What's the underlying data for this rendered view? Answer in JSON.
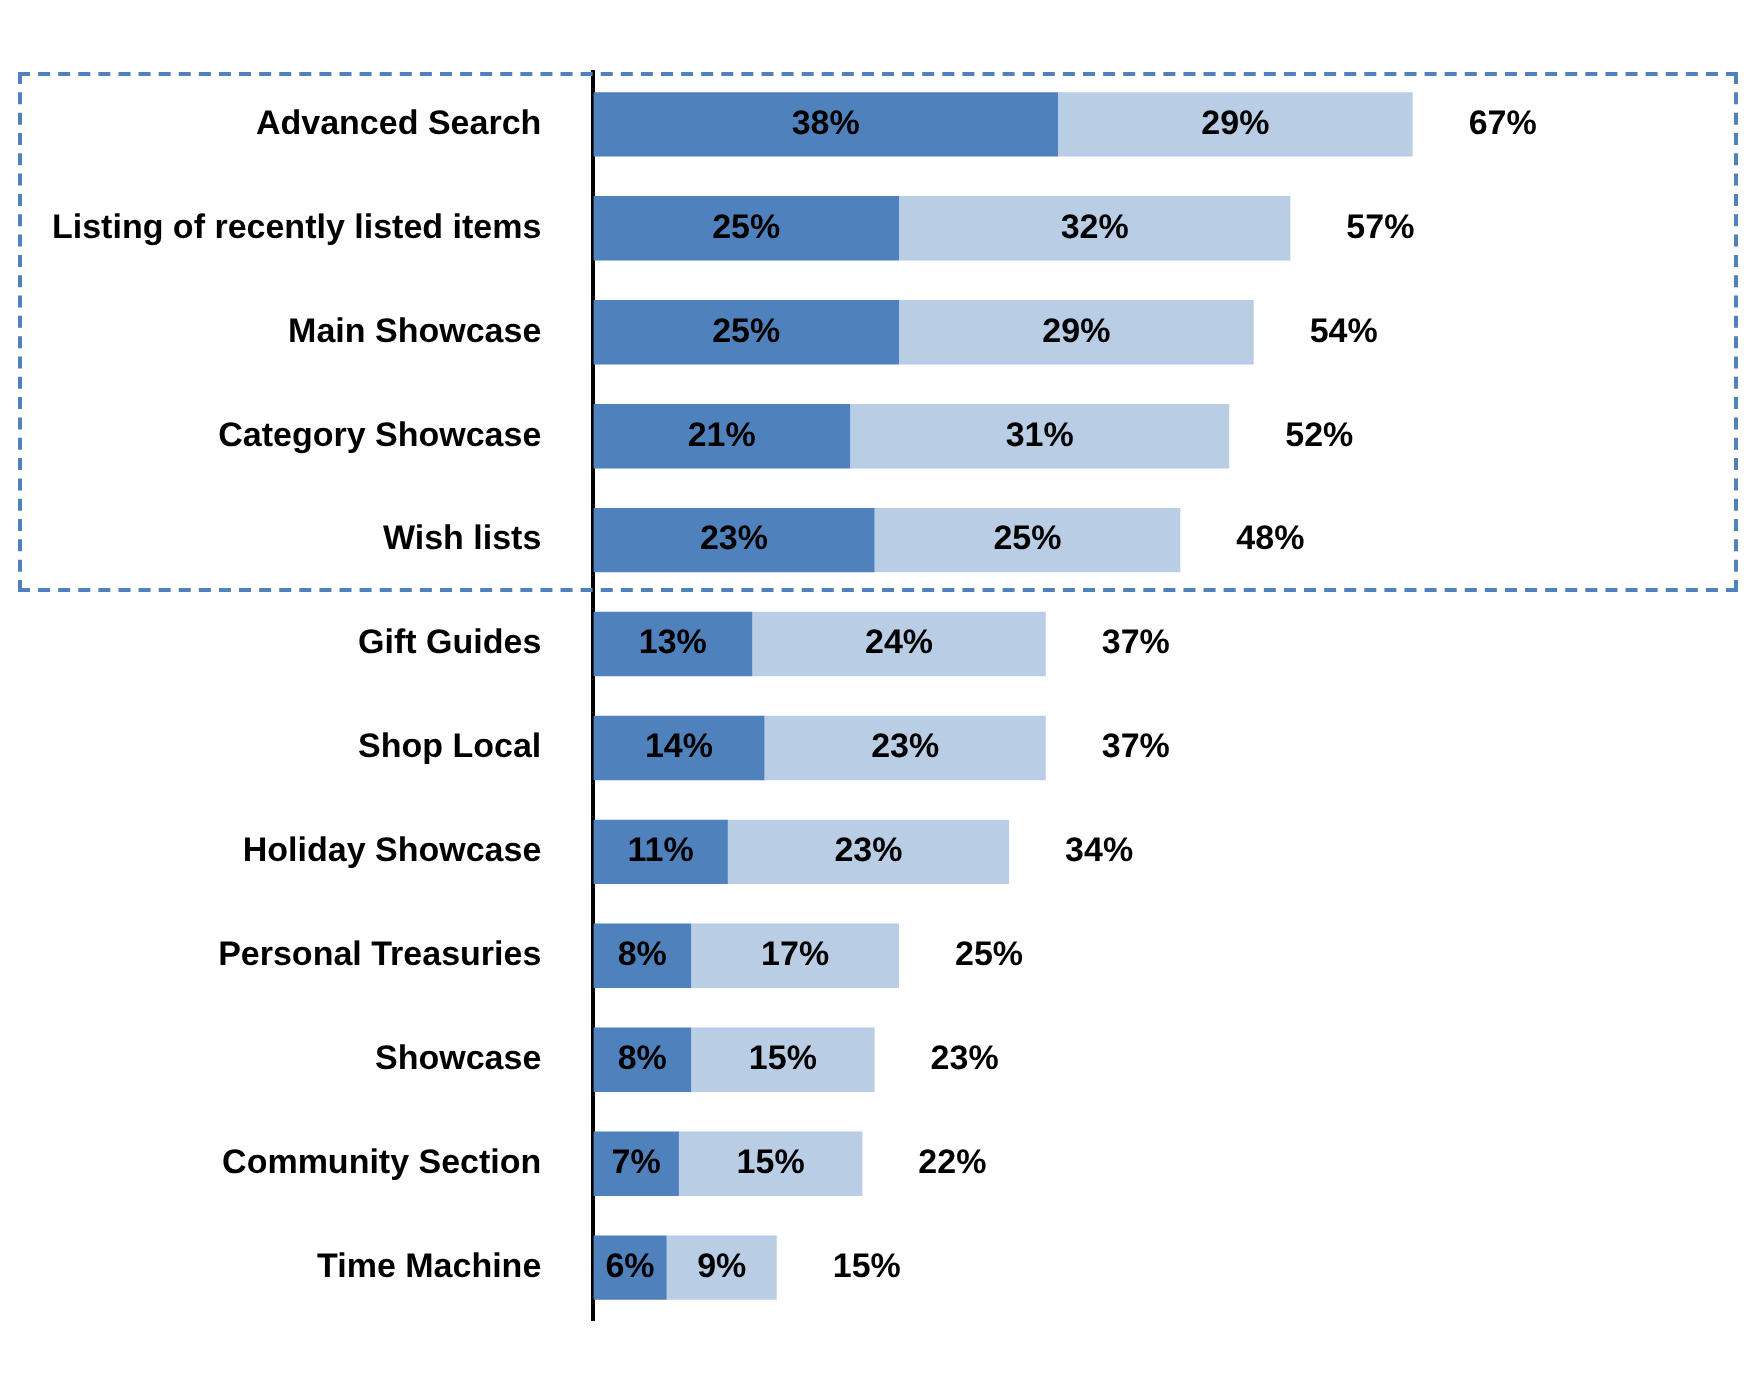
{
  "chart_data": {
    "type": "bar",
    "orientation": "horizontal",
    "stacked": true,
    "categories": [
      "Advanced Search",
      "Listing of recently listed items",
      "Main Showcase",
      "Category Showcase",
      "Wish lists",
      "Gift Guides",
      "Shop Local",
      "Holiday Showcase",
      "Personal Treasuries",
      "Showcase",
      "Community Section",
      "Time Machine"
    ],
    "series": [
      {
        "color": "#4f81bd",
        "values": [
          38,
          25,
          25,
          21,
          23,
          13,
          14,
          11,
          8,
          8,
          7,
          6
        ],
        "value_labels": [
          "38%",
          "25%",
          "25%",
          "21%",
          "23%",
          "13%",
          "14%",
          "11%",
          "8%",
          "8%",
          "7%",
          "6%"
        ]
      },
      {
        "color": "#b9cde5",
        "values": [
          29,
          32,
          29,
          31,
          25,
          24,
          23,
          23,
          17,
          15,
          15,
          9
        ],
        "value_labels": [
          "29%",
          "32%",
          "29%",
          "31%",
          "25%",
          "24%",
          "23%",
          "23%",
          "17%",
          "15%",
          "15%",
          "9%"
        ]
      }
    ],
    "totals": [
      "67%",
      "57%",
      "54%",
      "52%",
      "48%",
      "37%",
      "37%",
      "34%",
      "25%",
      "23%",
      "22%",
      "15%"
    ],
    "grid": false,
    "legend": false
  }
}
